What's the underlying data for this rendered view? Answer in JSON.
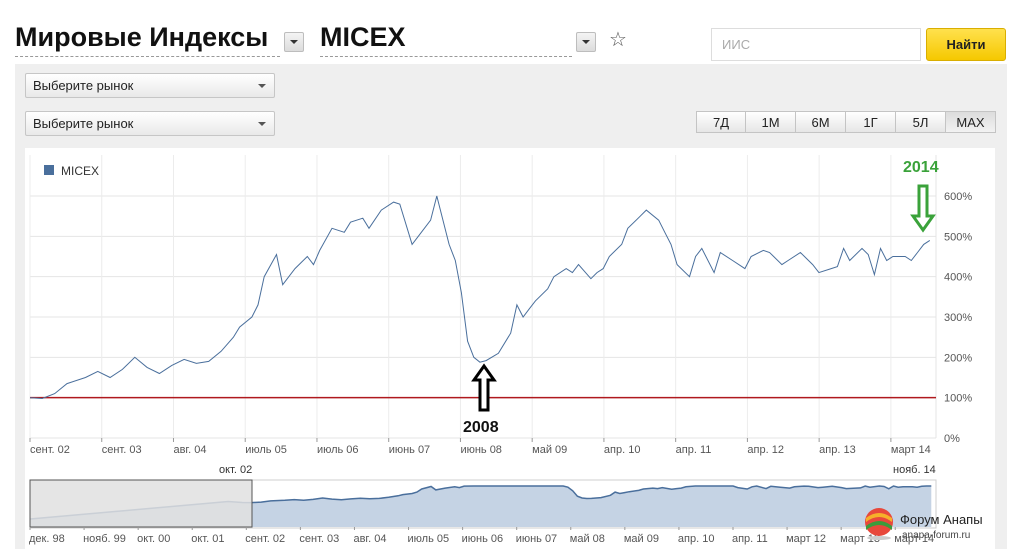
{
  "header": {
    "title": "Мировые Индексы",
    "index_name": "MICEX",
    "search_placeholder": "ИИС",
    "find_label": "Найти"
  },
  "filters": {
    "market1": "Выберите рынок",
    "market2": "Выберите рынок"
  },
  "periods": [
    "7Д",
    "1М",
    "6М",
    "1Г",
    "5Л",
    "MAX"
  ],
  "active_period": "MAX",
  "annotations": {
    "year_start": "2008",
    "year_end": "2014",
    "arrow_up_color": "#000000",
    "arrow_down_color": "#3aa23a"
  },
  "navigator": {
    "range_start_label": "окт. 02",
    "range_end_label": "нояб. 14",
    "x_ticks": [
      "дек. 98",
      "нояб. 99",
      "окт. 00",
      "окт. 01",
      "сент. 02",
      "сент. 03",
      "авг. 04",
      "июль 05",
      "июнь 06",
      "июнь 07",
      "май 08",
      "май 09",
      "апр. 10",
      "апр. 11",
      "март 12",
      "март 13",
      "март 14"
    ]
  },
  "watermark": {
    "name": "Форум Анапы",
    "url": "anapa-forum.ru"
  },
  "colors": {
    "line": "#4a6f9c",
    "baseline": "#b0191e",
    "navigator_fill": "#c5d3e4",
    "find_button": "#f7c900"
  },
  "chart_data": {
    "type": "line",
    "series": [
      {
        "name": "MICEX",
        "x": [
          "2002-09",
          "2002-11",
          "2003-01",
          "2003-03",
          "2003-06",
          "2003-08",
          "2003-10",
          "2003-12",
          "2004-02",
          "2004-04",
          "2004-06",
          "2004-08",
          "2004-10",
          "2004-12",
          "2005-02",
          "2005-04",
          "2005-06",
          "2005-07",
          "2005-09",
          "2005-10",
          "2005-11",
          "2006-01",
          "2006-02",
          "2006-04",
          "2006-06",
          "2006-07",
          "2006-08",
          "2006-10",
          "2006-12",
          "2007-01",
          "2007-03",
          "2007-04",
          "2007-06",
          "2007-08",
          "2007-09",
          "2007-11",
          "2007-12",
          "2008-02",
          "2008-03",
          "2008-05",
          "2008-06",
          "2008-07",
          "2008-08",
          "2008-09",
          "2008-10",
          "2008-11",
          "2009-01",
          "2009-03",
          "2009-04",
          "2009-05",
          "2009-06",
          "2009-07",
          "2009-09",
          "2009-10",
          "2009-12",
          "2010-01",
          "2010-02",
          "2010-04",
          "2010-05",
          "2010-06",
          "2010-07",
          "2010-09",
          "2010-10",
          "2010-12",
          "2011-01",
          "2011-03",
          "2011-04",
          "2011-05",
          "2011-06",
          "2011-08",
          "2011-09",
          "2011-10",
          "2011-12",
          "2012-01",
          "2012-03",
          "2012-05",
          "2012-06",
          "2012-08",
          "2012-09",
          "2012-11",
          "2012-12",
          "2013-02",
          "2013-04",
          "2013-05",
          "2013-07",
          "2013-08",
          "2013-09",
          "2013-10",
          "2013-12",
          "2014-01",
          "2014-02",
          "2014-03",
          "2014-04",
          "2014-05",
          "2014-07",
          "2014-08",
          "2014-09",
          "2014-10",
          "2014-11"
        ],
        "y": [
          100,
          98,
          110,
          135,
          150,
          165,
          150,
          170,
          200,
          175,
          160,
          180,
          195,
          185,
          190,
          215,
          250,
          275,
          300,
          330,
          400,
          455,
          380,
          420,
          450,
          430,
          465,
          520,
          510,
          535,
          545,
          520,
          565,
          585,
          580,
          480,
          500,
          540,
          600,
          480,
          440,
          360,
          240,
          200,
          188,
          192,
          210,
          260,
          330,
          300,
          320,
          340,
          370,
          400,
          420,
          410,
          430,
          395,
          410,
          420,
          450,
          480,
          520,
          550,
          565,
          540,
          510,
          480,
          430,
          400,
          450,
          470,
          410,
          460,
          440,
          420,
          450,
          465,
          460,
          430,
          440,
          460,
          430,
          410,
          420,
          425,
          470,
          440,
          470,
          455,
          405,
          470,
          440,
          450,
          450,
          440,
          460,
          480,
          490
        ]
      }
    ],
    "ylim": [
      0,
      600
    ],
    "yticks": [
      "0%",
      "100%",
      "200%",
      "300%",
      "400%",
      "500%",
      "600%"
    ],
    "x_ticks": [
      "сент. 02",
      "сент. 03",
      "авг. 04",
      "июль 05",
      "июль 06",
      "июнь 07",
      "июнь 08",
      "май 09",
      "апр. 10",
      "апр. 11",
      "апр. 12",
      "апр. 13",
      "март 14"
    ],
    "baseline": 100,
    "legend": "top-left",
    "grid": true
  }
}
